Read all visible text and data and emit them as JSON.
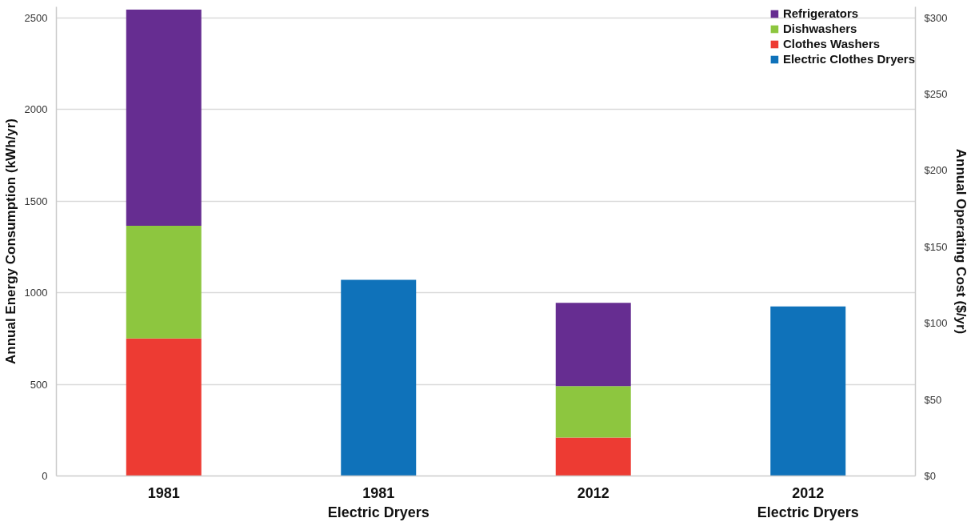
{
  "chart_data": {
    "type": "bar",
    "stacked": true,
    "categories": [
      "1981",
      "1981\nElectric Dryers",
      "2012",
      "2012\nElectric Dryers"
    ],
    "series": [
      {
        "name": "Clothes Washers",
        "color": "#ed3b33",
        "values": [
          750,
          null,
          210,
          null
        ]
      },
      {
        "name": "Dishwashers",
        "color": "#8dc63f",
        "values": [
          615,
          null,
          280,
          null
        ]
      },
      {
        "name": "Refrigerators",
        "color": "#662d91",
        "values": [
          1180,
          null,
          455,
          null
        ]
      },
      {
        "name": "Electric Clothes Dryers",
        "color": "#0f72ba",
        "values": [
          null,
          1070,
          null,
          925
        ]
      }
    ],
    "ylabel": "Annual Energy Consumption (kWh/yr)",
    "y2label": "Annual Operating Cost ($/yr)",
    "ylim": [
      0,
      2560
    ],
    "yticks": [
      0,
      500,
      1000,
      1500,
      2000,
      2500
    ],
    "y2lim": [
      0,
      307.2
    ],
    "y2ticks": [
      {
        "value": 0,
        "label": "$0"
      },
      {
        "value": 50,
        "label": "$50"
      },
      {
        "value": 100,
        "label": "$100"
      },
      {
        "value": 150,
        "label": "$150"
      },
      {
        "value": 200,
        "label": "$200"
      },
      {
        "value": 250,
        "label": "$250"
      },
      {
        "value": 300,
        "label": "$300"
      }
    ],
    "grid": "y",
    "legend": "top right"
  }
}
